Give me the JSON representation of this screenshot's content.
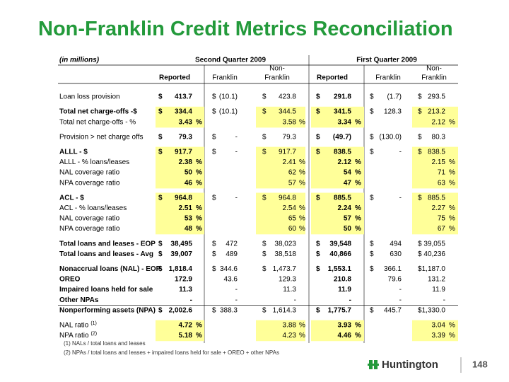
{
  "header": {
    "title": "Non-Franklin Credit Metrics Reconciliation"
  },
  "table": {
    "unit": "(in millions)",
    "periods": [
      "Second Quarter 2009",
      "First Quarter 2009"
    ],
    "columns": [
      "Reported",
      "Franklin",
      "Non-",
      "Franklin"
    ],
    "groups": [
      [
        {
          "label": "Loan loss provision",
          "cells": [
            {
              "cur": "$",
              "v": "413.7"
            },
            {
              "cur": "$",
              "v": "(10.1)"
            },
            {
              "cur": "$",
              "v": "423.8"
            },
            {
              "cur": "$",
              "v": "291.8"
            },
            {
              "cur": "$",
              "v": "(1.7)"
            },
            {
              "cur": "$",
              "v": "293.5"
            }
          ]
        }
      ],
      [
        {
          "label": "Total net charge-offs -$",
          "bold": true,
          "highlight": true,
          "cells": [
            {
              "cur": "$",
              "v": "334.4"
            },
            {
              "cur": "$",
              "v": "(10.1)"
            },
            {
              "cur": "$",
              "v": "344.5"
            },
            {
              "cur": "$",
              "v": "341.5"
            },
            {
              "cur": "$",
              "v": "128.3"
            },
            {
              "cur": "$",
              "v": "213.2"
            }
          ]
        },
        {
          "label": "Total net charge-offs - %",
          "highlight": true,
          "cells": [
            {
              "v": "3.43",
              "pct": "%"
            },
            null,
            {
              "v": "3.58",
              "pct": "%"
            },
            {
              "v": "3.34",
              "pct": "%"
            },
            null,
            {
              "v": "2.12",
              "pct": "%"
            }
          ]
        }
      ],
      [
        {
          "label": "Provision > net charge offs",
          "cells": [
            {
              "cur": "$",
              "v": "79.3"
            },
            {
              "cur": "$",
              "v": "-"
            },
            {
              "cur": "$",
              "v": "79.3"
            },
            {
              "cur": "$",
              "v": "(49.7)"
            },
            {
              "cur": "$",
              "v": "(130.0)"
            },
            {
              "cur": "$",
              "v": "80.3"
            }
          ]
        }
      ],
      [
        {
          "label": "ALLL - $",
          "bold": true,
          "highlight": true,
          "cells": [
            {
              "cur": "$",
              "v": "917.7"
            },
            {
              "cur": "$",
              "v": "-"
            },
            {
              "cur": "$",
              "v": "917.7"
            },
            {
              "cur": "$",
              "v": "838.5"
            },
            {
              "cur": "$",
              "v": "-"
            },
            {
              "cur": "$",
              "v": "838.5"
            }
          ]
        },
        {
          "label": "ALLL - % loans/leases",
          "highlight": true,
          "cells": [
            {
              "v": "2.38",
              "pct": "%"
            },
            null,
            {
              "v": "2.41",
              "pct": "%"
            },
            {
              "v": "2.12",
              "pct": "%"
            },
            null,
            {
              "v": "2.15",
              "pct": "%"
            }
          ]
        },
        {
          "label": "NAL coverage ratio",
          "highlight": true,
          "cells": [
            {
              "v": "50",
              "pct": "%"
            },
            null,
            {
              "v": "62",
              "pct": "%"
            },
            {
              "v": "54",
              "pct": "%"
            },
            null,
            {
              "v": "71",
              "pct": "%"
            }
          ]
        },
        {
          "label": "NPA coverage ratio",
          "highlight": true,
          "cells": [
            {
              "v": "46",
              "pct": "%"
            },
            null,
            {
              "v": "57",
              "pct": "%"
            },
            {
              "v": "47",
              "pct": "%"
            },
            null,
            {
              "v": "63",
              "pct": "%"
            }
          ]
        }
      ],
      [
        {
          "label": "ACL - $",
          "bold": true,
          "highlight": true,
          "cells": [
            {
              "cur": "$",
              "v": "964.8"
            },
            {
              "cur": "$",
              "v": "-"
            },
            {
              "cur": "$",
              "v": "964.8"
            },
            {
              "cur": "$",
              "v": "885.5"
            },
            {
              "cur": "$",
              "v": "-"
            },
            {
              "cur": "$",
              "v": "885.5"
            }
          ]
        },
        {
          "label": "ACL - % loans/leases",
          "highlight": true,
          "cells": [
            {
              "v": "2.51",
              "pct": "%"
            },
            null,
            {
              "v": "2.54",
              "pct": "%"
            },
            {
              "v": "2.24",
              "pct": "%"
            },
            null,
            {
              "v": "2.27",
              "pct": "%"
            }
          ]
        },
        {
          "label": "NAL coverage ratio",
          "highlight": true,
          "cells": [
            {
              "v": "53",
              "pct": "%"
            },
            null,
            {
              "v": "65",
              "pct": "%"
            },
            {
              "v": "57",
              "pct": "%"
            },
            null,
            {
              "v": "75",
              "pct": "%"
            }
          ]
        },
        {
          "label": "NPA coverage ratio",
          "highlight": true,
          "cells": [
            {
              "v": "48",
              "pct": "%"
            },
            null,
            {
              "v": "60",
              "pct": "%"
            },
            {
              "v": "50",
              "pct": "%"
            },
            null,
            {
              "v": "67",
              "pct": "%"
            }
          ]
        }
      ],
      [
        {
          "label": "Total loans and leases - EOP",
          "bold": true,
          "cells": [
            {
              "cur": "$",
              "v": "38,495"
            },
            {
              "cur": "$",
              "v": "472"
            },
            {
              "cur": "$",
              "v": "38,023"
            },
            {
              "cur": "$",
              "v": "39,548"
            },
            {
              "cur": "$",
              "v": "494"
            },
            {
              "cur": "$",
              "v": "39,055"
            }
          ]
        },
        {
          "label": "Total loans and leases - Avg",
          "bold": true,
          "cells": [
            {
              "cur": "$",
              "v": "39,007"
            },
            {
              "cur": "$",
              "v": "489"
            },
            {
              "cur": "$",
              "v": "38,518"
            },
            {
              "cur": "$",
              "v": "40,866"
            },
            {
              "cur": "$",
              "v": "630"
            },
            {
              "cur": "$",
              "v": "40,236"
            }
          ]
        }
      ],
      [
        {
          "label": "Nonaccrual loans (NAL) - EOP",
          "bold": true,
          "cells": [
            {
              "cur": "$",
              "v": "1,818.4"
            },
            {
              "cur": "$",
              "v": "344.6"
            },
            {
              "cur": "$",
              "v": "1,473.7"
            },
            {
              "cur": "$",
              "v": "1,553.1"
            },
            {
              "cur": "$",
              "v": "366.1"
            },
            {
              "cur": "$",
              "v": "1,187.0"
            }
          ]
        },
        {
          "label": "OREO",
          "bold": true,
          "cells": [
            {
              "v": "172.9"
            },
            {
              "v": "43.6"
            },
            {
              "v": "129.3"
            },
            {
              "v": "210.8"
            },
            {
              "v": "79.6"
            },
            {
              "v": "131.2"
            }
          ]
        },
        {
          "label": "Impaired loans held for sale",
          "bold": true,
          "cells": [
            {
              "v": "11.3"
            },
            {
              "v": "-"
            },
            {
              "v": "11.3"
            },
            {
              "v": "11.9"
            },
            {
              "v": "-"
            },
            {
              "v": "11.9"
            }
          ]
        },
        {
          "label": "Other NPAs",
          "bold": true,
          "cells": [
            {
              "v": "-"
            },
            {
              "v": "-"
            },
            {
              "v": "-"
            },
            {
              "v": "-"
            },
            {
              "v": "-"
            },
            {
              "v": "-"
            }
          ]
        },
        {
          "label": "Nonperforming assets (NPA)",
          "bold": true,
          "rule": true,
          "cells": [
            {
              "cur": "$",
              "v": "2,002.6"
            },
            {
              "cur": "$",
              "v": "388.3"
            },
            {
              "cur": "$",
              "v": "1,614.3"
            },
            {
              "cur": "$",
              "v": "1,775.7"
            },
            {
              "cur": "$",
              "v": "445.7"
            },
            {
              "cur": "$",
              "v": "1,330.0"
            }
          ]
        }
      ],
      [
        {
          "label": "NAL ratio",
          "note": "(1)",
          "highlight": true,
          "cells": [
            {
              "v": "4.72",
              "pct": "%"
            },
            null,
            {
              "v": "3.88",
              "pct": "%"
            },
            {
              "v": "3.93",
              "pct": "%"
            },
            null,
            {
              "v": "3.04",
              "pct": "%"
            }
          ]
        },
        {
          "label": "NPA ratio",
          "note": "(2)",
          "highlight": true,
          "cells": [
            {
              "v": "5.18",
              "pct": "%"
            },
            null,
            {
              "v": "4.23",
              "pct": "%"
            },
            {
              "v": "4.46",
              "pct": "%"
            },
            null,
            {
              "v": "3.39",
              "pct": "%"
            }
          ]
        }
      ]
    ],
    "footnotes": [
      "(1) NALs / total loans and leases",
      "(2) NPAs / total loans and leases + impaired loans held for sale + OREO + other NPAs"
    ]
  },
  "footer": {
    "logo": "Huntington",
    "page": "148"
  }
}
